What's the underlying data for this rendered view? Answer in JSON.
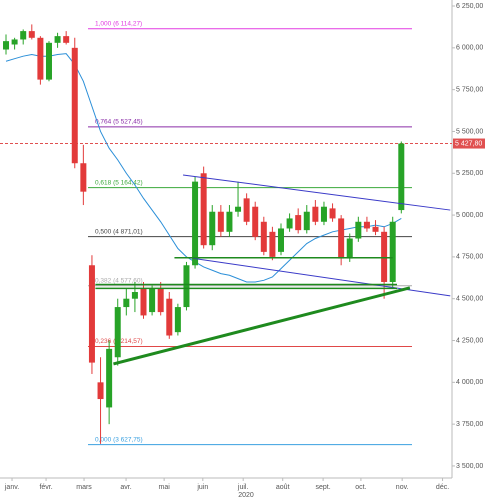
{
  "chart_data": {
    "type": "candlestick",
    "x": [
      0,
      1,
      2,
      3,
      4,
      5,
      6,
      7,
      8,
      9,
      10,
      11,
      12,
      13,
      14,
      15,
      16,
      17,
      18,
      19,
      20,
      21,
      22,
      23,
      24,
      25,
      26,
      27,
      28,
      29,
      30,
      31,
      32,
      33,
      34,
      35,
      36,
      37,
      38,
      39,
      40,
      41,
      42,
      43,
      44,
      45,
      46
    ],
    "open": [
      5990,
      6020,
      6050,
      6100,
      6060,
      5810,
      6030,
      6070,
      6000,
      5310,
      4700,
      4000,
      3850,
      4150,
      4450,
      4500,
      4560,
      4420,
      4560,
      4500,
      4300,
      4450,
      4700,
      5250,
      4820,
      5020,
      4900,
      5020,
      5100,
      5050,
      4960,
      4900,
      4780,
      4920,
      5000,
      4910,
      5050,
      4960,
      5040,
      4980,
      4740,
      4860,
      4960,
      4930,
      4900,
      4600,
      5030
    ],
    "high": [
      6080,
      6060,
      6110,
      6140,
      6070,
      6040,
      6090,
      6100,
      6060,
      5420,
      4760,
      4150,
      4250,
      4500,
      4560,
      4600,
      4600,
      4580,
      4600,
      4540,
      4470,
      4720,
      5230,
      5290,
      5060,
      5060,
      5060,
      5200,
      5130,
      5080,
      4990,
      4930,
      4950,
      5010,
      5040,
      5060,
      5090,
      5080,
      5070,
      5000,
      4890,
      4990,
      4990,
      4970,
      4930,
      4990,
      5440
    ],
    "low": [
      5960,
      5990,
      6020,
      6050,
      5780,
      5800,
      6000,
      6020,
      5280,
      5060,
      4050,
      3632,
      3750,
      4100,
      4400,
      4420,
      4380,
      4400,
      4400,
      4260,
      4280,
      4430,
      4680,
      4800,
      4790,
      4870,
      4870,
      4990,
      4940,
      4850,
      4760,
      4730,
      4760,
      4900,
      4890,
      4890,
      4940,
      4940,
      4960,
      4700,
      4720,
      4840,
      4900,
      4880,
      4500,
      4570,
      5010
    ],
    "close": [
      6040,
      6050,
      6100,
      6060,
      5810,
      6030,
      6070,
      6030,
      5310,
      5140,
      4118,
      3900,
      4200,
      4450,
      4500,
      4540,
      4400,
      4560,
      4420,
      4280,
      4450,
      4700,
      5200,
      4820,
      5020,
      4900,
      5020,
      5050,
      4960,
      4870,
      4780,
      4750,
      4920,
      4980,
      4910,
      5020,
      4960,
      5050,
      4980,
      4740,
      4860,
      4960,
      4920,
      4900,
      4600,
      4960,
      5428
    ],
    "up_color": "#27a327",
    "down_color": "#e23a3a",
    "moving_average": {
      "color": "#2b8fd8",
      "values": [
        5920,
        5935,
        5950,
        5960,
        5950,
        5950,
        5960,
        5965,
        5900,
        5800,
        5650,
        5500,
        5400,
        5330,
        5250,
        5180,
        5100,
        5030,
        4960,
        4880,
        4800,
        4750,
        4720,
        4690,
        4670,
        4650,
        4640,
        4620,
        4600,
        4600,
        4610,
        4630,
        4680,
        4730,
        4780,
        4830,
        4860,
        4880,
        4900,
        4910,
        4920,
        4930,
        4930,
        4940,
        4930,
        4950,
        4980
      ]
    },
    "fib_levels": [
      {
        "label": "1,000 (6 114,27)",
        "value": 6114.27,
        "color": "#e23ae2"
      },
      {
        "label": "0,764 (5 527,45)",
        "value": 5527.45,
        "color": "#8a2ca8"
      },
      {
        "label": "0,618 (5 164,42)",
        "value": 5164.42,
        "color": "#3aa83a"
      },
      {
        "label": "0,500 (4 871,01)",
        "value": 4871.01,
        "color": "#444444"
      },
      {
        "label": "0,382 (4 577,60)",
        "value": 4577.6,
        "color": "#aaaaaa"
      },
      {
        "label": "0,236 (4 214,57)",
        "value": 4214.57,
        "color": "#e04848"
      },
      {
        "label": "0,000 (3 627,75)",
        "value": 3627.75,
        "color": "#3aa0e0"
      }
    ],
    "price_line": {
      "value": 5427.8,
      "label": "5 427,80",
      "color": "#e05050"
    },
    "trend_lines": [
      {
        "color": "#3a3ac8",
        "width": 1,
        "x": [
          20.6,
          51.7
        ],
        "y": [
          5240,
          5030
        ]
      },
      {
        "color": "#3a3ac8",
        "width": 1,
        "x": [
          21.4,
          51.7
        ],
        "y": [
          4744,
          4517
        ]
      },
      {
        "color": "#1e8a1e",
        "width": 3,
        "x": [
          12.5,
          47
        ],
        "y": [
          4110,
          4565
        ]
      },
      {
        "color": "#1e8a1e",
        "width": 1.5,
        "x": [
          19.6,
          45
        ],
        "y": [
          4745,
          4745
        ]
      },
      {
        "color": "#1e8a1e",
        "width": 1.5,
        "x": [
          10.4,
          45.5
        ],
        "y": [
          4585,
          4585
        ]
      },
      {
        "color": "#1e8a1e",
        "width": 1.5,
        "x": [
          10.4,
          45.5
        ],
        "y": [
          4562,
          4562
        ]
      }
    ],
    "x_label": "2020",
    "xlim": [
      -0.7,
      51.9
    ],
    "xticks": [
      {
        "value": 0.7,
        "label": "janv."
      },
      {
        "value": 4.66,
        "label": "févr."
      },
      {
        "value": 9.08,
        "label": "mars"
      },
      {
        "value": 13.97,
        "label": "avr."
      },
      {
        "value": 18.4,
        "label": "mai"
      },
      {
        "value": 22.9,
        "label": "juin"
      },
      {
        "value": 27.6,
        "label": "juil."
      },
      {
        "value": 32.2,
        "label": "août"
      },
      {
        "value": 36.9,
        "label": "sept."
      },
      {
        "value": 41.3,
        "label": "oct."
      },
      {
        "value": 46.1,
        "label": "nov."
      },
      {
        "value": 50.8,
        "label": "déc."
      }
    ],
    "ylim": [
      3428,
      6286
    ],
    "yticks": [
      {
        "value": 3500,
        "label": "3 500,00"
      },
      {
        "value": 3750,
        "label": "3 750,00"
      },
      {
        "value": 4000,
        "label": "4 000,00"
      },
      {
        "value": 4250,
        "label": "4 250,00"
      },
      {
        "value": 4500,
        "label": "4 500,00"
      },
      {
        "value": 4750,
        "label": "4 750,00"
      },
      {
        "value": 5000,
        "label": "5 000,00"
      },
      {
        "value": 5250,
        "label": "5 250,00"
      },
      {
        "value": 5500,
        "label": "5 500,00"
      },
      {
        "value": 5750,
        "label": "5 750,00"
      },
      {
        "value": 6000,
        "label": "6 000,00"
      },
      {
        "value": 6250,
        "label": "6 250,00"
      }
    ]
  }
}
